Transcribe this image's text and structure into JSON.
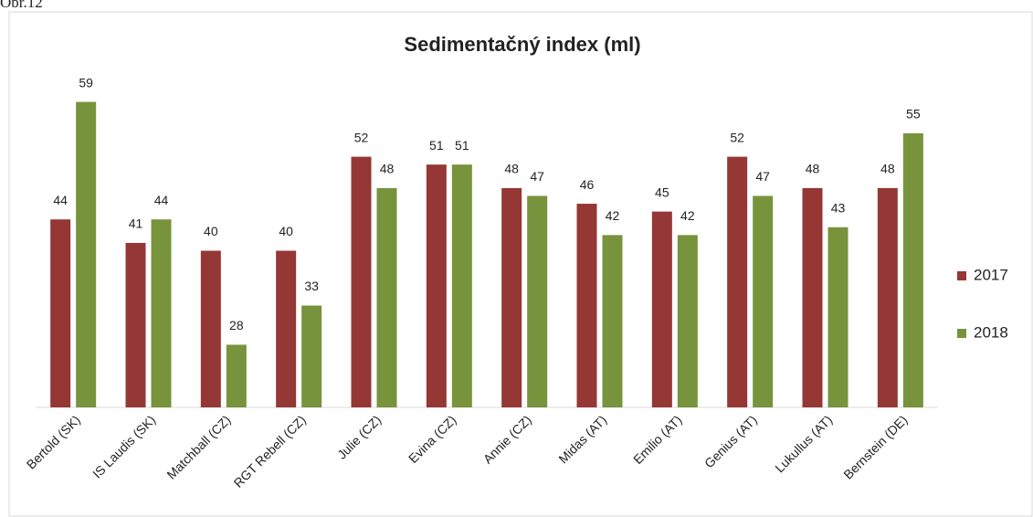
{
  "caption": "Obr.12",
  "chart_data": {
    "type": "bar",
    "title": "Sedimentačný index (ml)",
    "categories": [
      "Bertold (SK)",
      "IS Laudis (SK)",
      "Matchball (CZ)",
      "RGT Rebell (CZ)",
      "Julie (CZ)",
      "Evina (CZ)",
      "Annie (CZ)",
      "Midas (AT)",
      "Emilio (AT)",
      "Genius (AT)",
      "Lukullus (AT)",
      "Bernstein (DE)"
    ],
    "series": [
      {
        "name": "2017",
        "color": "#953735",
        "values": [
          44,
          41,
          40,
          40,
          52,
          51,
          48,
          46,
          45,
          52,
          48,
          48
        ]
      },
      {
        "name": "2018",
        "color": "#77933c",
        "values": [
          59,
          44,
          28,
          33,
          48,
          51,
          47,
          42,
          42,
          47,
          43,
          55
        ]
      }
    ],
    "ylim": [
      20,
      60
    ],
    "legend": "right"
  }
}
